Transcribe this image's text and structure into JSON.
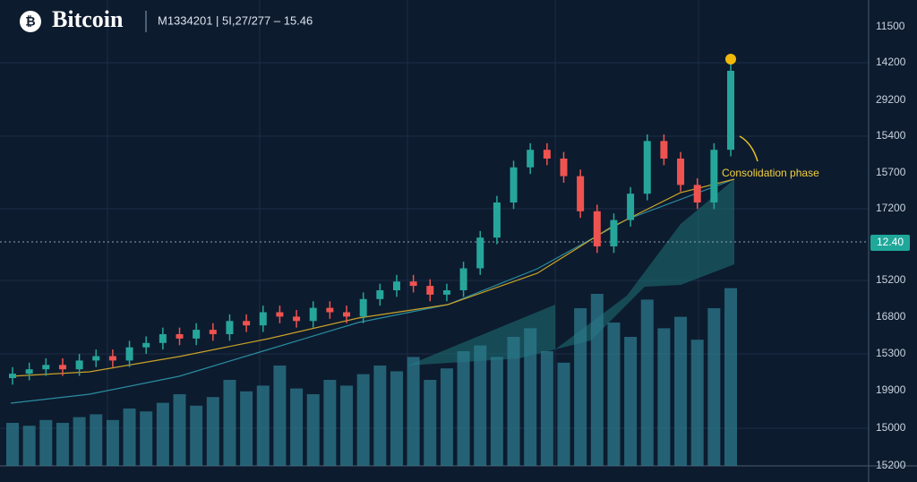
{
  "chart_data": {
    "type": "candlestick",
    "title": "Bitcoin",
    "subtitle": "M1334201 | 5I,27/277 – 15.46",
    "annotation": "Consolidation phase",
    "price_tag": "12.40",
    "y_axis_labels": [
      "11500",
      "14200",
      "29200",
      "15400",
      "15700",
      "17200",
      "15200",
      "16800",
      "15300",
      "19900",
      "15000",
      "15200"
    ],
    "ylim": [
      0,
      100
    ],
    "volume_lim": [
      0,
      100
    ],
    "up_color": "#26a69a",
    "down_color": "#ef5350",
    "volume_color": "#2c7a8c",
    "open": [
      20,
      21,
      22,
      23,
      22,
      24,
      25,
      24,
      27,
      28,
      30,
      29,
      31,
      30,
      33,
      32,
      35,
      34,
      33,
      36,
      35,
      34,
      38,
      40,
      42,
      41,
      39,
      40,
      45,
      52,
      60,
      68,
      72,
      70,
      66,
      58,
      50,
      56,
      62,
      74,
      70,
      64,
      60,
      72
    ],
    "high": [
      22.5,
      23.5,
      24.5,
      24.5,
      25.5,
      26.5,
      26.5,
      28.5,
      29.5,
      31.5,
      31.5,
      32.5,
      32.5,
      34.5,
      34.5,
      36.5,
      36.5,
      35.5,
      37.5,
      37.5,
      36.5,
      39.5,
      41.5,
      43.5,
      43.5,
      42.5,
      41.5,
      46.5,
      53.5,
      61.5,
      69.5,
      73.5,
      73.5,
      71.5,
      67.5,
      59.5,
      57.5,
      63.5,
      75.5,
      75.5,
      71.5,
      65.5,
      73.5,
      91.5
    ],
    "low": [
      18.5,
      19.5,
      20.5,
      20.5,
      20.5,
      22.5,
      22.5,
      22.5,
      25.5,
      26.5,
      27.5,
      27.5,
      28.5,
      28.5,
      30.5,
      30.5,
      32.5,
      31.5,
      31.5,
      33.5,
      32.5,
      32.5,
      36.5,
      38.5,
      39.5,
      37.5,
      37.5,
      38.5,
      43.5,
      50.5,
      58.5,
      66.5,
      68.5,
      64.5,
      56.5,
      48.5,
      48.5,
      54.5,
      60.5,
      68.5,
      62.5,
      58.5,
      58.5,
      70.5
    ],
    "close": [
      21,
      22,
      23,
      22,
      24,
      25,
      24,
      27,
      28,
      30,
      29,
      31,
      30,
      33,
      32,
      35,
      34,
      33,
      36,
      35,
      34,
      38,
      40,
      42,
      41,
      39,
      40,
      45,
      52,
      60,
      68,
      72,
      70,
      66,
      58,
      50,
      56,
      62,
      74,
      70,
      64,
      60,
      72,
      90
    ],
    "volume": [
      15,
      14,
      16,
      15,
      17,
      18,
      16,
      20,
      19,
      22,
      25,
      21,
      24,
      30,
      26,
      28,
      35,
      27,
      25,
      30,
      28,
      32,
      35,
      33,
      38,
      30,
      34,
      40,
      42,
      38,
      45,
      48,
      40,
      36,
      55,
      60,
      50,
      45,
      58,
      48,
      52,
      44,
      55,
      62
    ]
  }
}
